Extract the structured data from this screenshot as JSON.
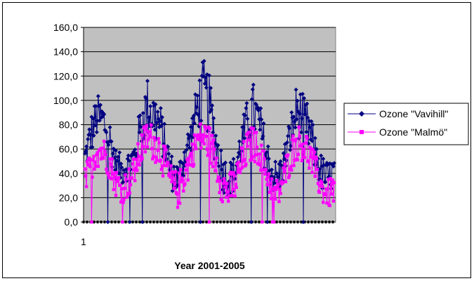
{
  "chart_data": {
    "type": "line",
    "title": "",
    "xlabel": "Year 2001-2005",
    "ylabel": "",
    "ylim": [
      0,
      160
    ],
    "yticks": [
      "0,0",
      "20,0",
      "40,0",
      "60,0",
      "80,0",
      "100,0",
      "120,0",
      "140,0",
      "160,0"
    ],
    "xtick_label": "1",
    "grid": true,
    "legend_position": "right",
    "plot_background": "#c0c0c0",
    "series": [
      {
        "name": "Ozone \"Vavihill\"",
        "color": "#000080",
        "marker": "diamond",
        "approx_monthly_range": [
          [
            40,
            65
          ],
          [
            55,
            90
          ],
          [
            70,
            105
          ],
          [
            65,
            100
          ],
          [
            50,
            85
          ],
          [
            35,
            60
          ],
          [
            30,
            55
          ],
          [
            35,
            60
          ],
          [
            40,
            68
          ],
          [
            60,
            100
          ],
          [
            70,
            120
          ],
          [
            65,
            110
          ],
          [
            60,
            100
          ],
          [
            45,
            75
          ],
          [
            25,
            55
          ],
          [
            20,
            50
          ],
          [
            40,
            70
          ],
          [
            55,
            85
          ],
          [
            75,
            115
          ],
          [
            80,
            135
          ],
          [
            70,
            120
          ],
          [
            45,
            85
          ],
          [
            25,
            60
          ],
          [
            20,
            50
          ],
          [
            25,
            55
          ],
          [
            45,
            80
          ],
          [
            60,
            100
          ],
          [
            70,
            115
          ],
          [
            60,
            100
          ],
          [
            40,
            75
          ],
          [
            25,
            55
          ],
          [
            20,
            50
          ],
          [
            35,
            65
          ],
          [
            55,
            90
          ],
          [
            70,
            115
          ],
          [
            65,
            105
          ],
          [
            55,
            95
          ],
          [
            40,
            70
          ],
          [
            25,
            55
          ],
          [
            20,
            50
          ],
          [
            30,
            55
          ]
        ]
      },
      {
        "name": "Ozone \"Malmö\"",
        "color": "#ff00ff",
        "marker": "square",
        "approx_monthly_range": [
          [
            20,
            45
          ],
          [
            35,
            60
          ],
          [
            45,
            75
          ],
          [
            45,
            70
          ],
          [
            35,
            60
          ],
          [
            20,
            45
          ],
          [
            15,
            40
          ],
          [
            20,
            45
          ],
          [
            30,
            55
          ],
          [
            45,
            75
          ],
          [
            55,
            85
          ],
          [
            50,
            80
          ],
          [
            45,
            75
          ],
          [
            30,
            60
          ],
          [
            15,
            45
          ],
          [
            10,
            40
          ],
          [
            25,
            55
          ],
          [
            40,
            65
          ],
          [
            55,
            80
          ],
          [
            55,
            85
          ],
          [
            50,
            80
          ],
          [
            35,
            65
          ],
          [
            15,
            45
          ],
          [
            10,
            40
          ],
          [
            15,
            45
          ],
          [
            30,
            60
          ],
          [
            45,
            75
          ],
          [
            50,
            80
          ],
          [
            45,
            70
          ],
          [
            30,
            55
          ],
          [
            15,
            40
          ],
          [
            10,
            35
          ],
          [
            25,
            50
          ],
          [
            40,
            70
          ],
          [
            50,
            80
          ],
          [
            50,
            80
          ],
          [
            40,
            70
          ],
          [
            30,
            55
          ],
          [
            15,
            40
          ],
          [
            10,
            35
          ],
          [
            15,
            40
          ]
        ]
      }
    ]
  }
}
